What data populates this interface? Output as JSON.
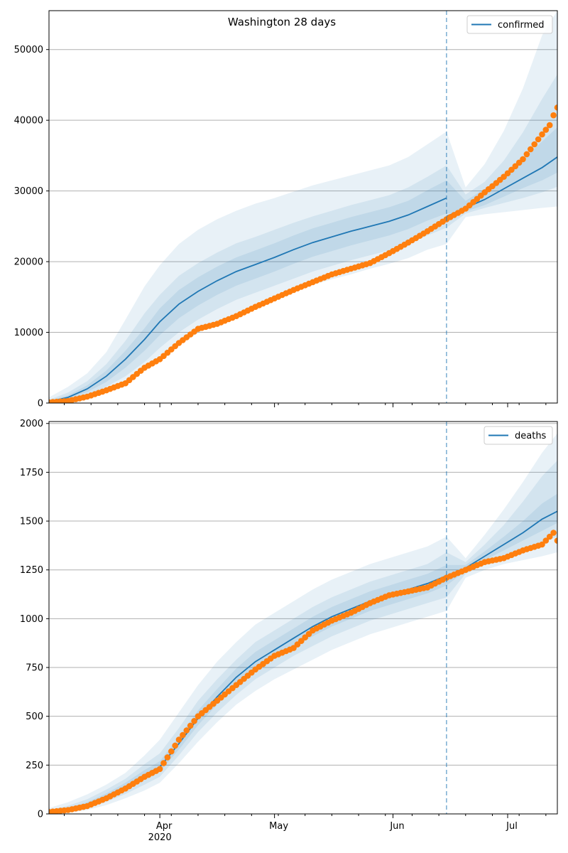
{
  "title": "Washington 28 days",
  "colors": {
    "model": "#1f77b4",
    "observed": "#ff7f0e",
    "band": "#1f77b4",
    "grid": "#b0b0b0",
    "divider": "#1f77b4"
  },
  "x_axis": {
    "start_date": "2020-03-03",
    "end_date": "2020-07-14",
    "cutoff_date": "2020-06-15",
    "month_labels": [
      {
        "date": "2020-04-01",
        "text": "Apr",
        "sub": "2020"
      },
      {
        "date": "2020-05-01",
        "text": "May",
        "sub": ""
      },
      {
        "date": "2020-06-01",
        "text": "Jun",
        "sub": ""
      },
      {
        "date": "2020-07-01",
        "text": "Jul",
        "sub": ""
      }
    ]
  },
  "chart_data": [
    {
      "type": "line",
      "panel": "confirmed",
      "legend": "confirmed",
      "legend_position": "top-right",
      "grid": "horizontal",
      "ylim": [
        0,
        55500
      ],
      "yticks": [
        0,
        10000,
        20000,
        30000,
        40000,
        50000
      ],
      "ytick_labels": [
        "0",
        "10000",
        "20000",
        "30000",
        "40000",
        "50000"
      ],
      "model": {
        "dates": [
          "2020-03-03",
          "2020-03-08",
          "2020-03-13",
          "2020-03-18",
          "2020-03-23",
          "2020-03-28",
          "2020-04-01",
          "2020-04-06",
          "2020-04-11",
          "2020-04-16",
          "2020-04-21",
          "2020-04-26",
          "2020-05-01",
          "2020-05-06",
          "2020-05-11",
          "2020-05-16",
          "2020-05-21",
          "2020-05-26",
          "2020-05-31",
          "2020-06-05",
          "2020-06-10",
          "2020-06-15",
          "2020-06-20",
          "2020-06-25",
          "2020-06-30",
          "2020-07-05",
          "2020-07-10",
          "2020-07-14"
        ],
        "values": [
          200,
          800,
          2000,
          3800,
          6200,
          9000,
          11500,
          14000,
          15800,
          17300,
          18600,
          19600,
          20600,
          21700,
          22700,
          23500,
          24300,
          25000,
          25700,
          26600,
          27800,
          29000,
          27600,
          28800,
          30300,
          31800,
          33300,
          34800
        ],
        "bands": [
          {
            "opacity": 0.1,
            "lower": [
              0,
              200,
              700,
              1600,
              2800,
              4500,
              6200,
              8200,
              9900,
              11300,
              12600,
              13600,
              14700,
              15700,
              16700,
              17500,
              18200,
              19000,
              19700,
              20500,
              21700,
              22500,
              26300,
              26700,
              27000,
              27300,
              27600,
              27800
            ],
            "upper": [
              800,
              2300,
              4200,
              7200,
              11800,
              16500,
              19500,
              22500,
              24500,
              26000,
              27200,
              28200,
              29000,
              29900,
              30800,
              31500,
              32200,
              32900,
              33600,
              34800,
              36600,
              38400,
              30500,
              33800,
              38500,
              44500,
              52000,
              55500
            ]
          },
          {
            "opacity": 0.1,
            "lower": [
              50,
              400,
              1100,
              2300,
              3800,
              5800,
              7800,
              10000,
              11800,
              13300,
              14600,
              15600,
              16600,
              17600,
              18600,
              19400,
              20200,
              20900,
              21600,
              22500,
              23700,
              24800,
              26800,
              27600,
              28300,
              29000,
              29800,
              30600
            ],
            "upper": [
              450,
              1500,
              3100,
              5500,
              8800,
              12700,
              15300,
              18000,
              19800,
              21300,
              22600,
              23500,
              24500,
              25500,
              26400,
              27200,
              28000,
              28700,
              29400,
              30500,
              32000,
              33600,
              29500,
              31300,
              34300,
              38300,
              43000,
              46500
            ]
          },
          {
            "opacity": 0.1,
            "lower": [
              100,
              600,
              1550,
              3000,
              5000,
              7400,
              9600,
              12000,
              13800,
              15300,
              16600,
              17600,
              18600,
              19700,
              20700,
              21500,
              22300,
              23000,
              23700,
              24600,
              25800,
              26800,
              27100,
              28000,
              29200,
              30400,
              31500,
              32600
            ],
            "upper": [
              300,
              1100,
              2500,
              4600,
              7400,
              10600,
              13400,
              16000,
              17800,
              19300,
              20600,
              21600,
              22600,
              23700,
              24700,
              25500,
              26300,
              27000,
              27700,
              28600,
              30100,
              31500,
              28600,
              30300,
              32300,
              34500,
              37000,
              39000
            ]
          }
        ]
      },
      "observed": {
        "dates": [
          "2020-03-03",
          "2020-03-08",
          "2020-03-13",
          "2020-03-18",
          "2020-03-23",
          "2020-03-28",
          "2020-04-01",
          "2020-04-06",
          "2020-04-11",
          "2020-04-16",
          "2020-04-21",
          "2020-04-26",
          "2020-05-01",
          "2020-05-06",
          "2020-05-11",
          "2020-05-16",
          "2020-05-21",
          "2020-05-26",
          "2020-05-31",
          "2020-06-05",
          "2020-06-10",
          "2020-06-15",
          "2020-06-20",
          "2020-06-25",
          "2020-06-30",
          "2020-07-05",
          "2020-07-10",
          "2020-07-12",
          "2020-07-13",
          "2020-07-14"
        ],
        "values": [
          100,
          300,
          900,
          1800,
          2800,
          5000,
          6200,
          8500,
          10500,
          11200,
          12300,
          13600,
          14800,
          16000,
          17100,
          18200,
          19000,
          19800,
          21200,
          22700,
          24300,
          26000,
          27500,
          29800,
          32000,
          34500,
          38000,
          39300,
          40700,
          41800
        ]
      }
    },
    {
      "type": "line",
      "panel": "deaths",
      "legend": "deaths",
      "legend_position": "top-right",
      "grid": "horizontal",
      "ylim": [
        0,
        2010
      ],
      "yticks": [
        0,
        250,
        500,
        750,
        1000,
        1250,
        1500,
        1750,
        2000
      ],
      "ytick_labels": [
        "0",
        "250",
        "500",
        "750",
        "1000",
        "1250",
        "1500",
        "1750",
        "2000"
      ],
      "model": {
        "dates": [
          "2020-03-03",
          "2020-03-08",
          "2020-03-13",
          "2020-03-18",
          "2020-03-23",
          "2020-03-28",
          "2020-04-01",
          "2020-04-06",
          "2020-04-11",
          "2020-04-16",
          "2020-04-21",
          "2020-04-26",
          "2020-05-01",
          "2020-05-06",
          "2020-05-11",
          "2020-05-16",
          "2020-05-21",
          "2020-05-26",
          "2020-05-31",
          "2020-06-05",
          "2020-06-10",
          "2020-06-15",
          "2020-06-20",
          "2020-06-25",
          "2020-06-30",
          "2020-07-05",
          "2020-07-10",
          "2020-07-14"
        ],
        "values": [
          10,
          25,
          50,
          90,
          140,
          200,
          240,
          360,
          490,
          600,
          700,
          780,
          840,
          900,
          960,
          1010,
          1050,
          1090,
          1120,
          1150,
          1180,
          1220,
          1260,
          1320,
          1380,
          1440,
          1510,
          1550
        ],
        "bands": [
          {
            "opacity": 0.1,
            "lower": [
              0,
              5,
              20,
              45,
              80,
              120,
              160,
              260,
              370,
              470,
              560,
              630,
              690,
              740,
              790,
              840,
              880,
              920,
              950,
              980,
              1010,
              1040,
              1210,
              1250,
              1280,
              1300,
              1320,
              1340
            ],
            "upper": [
              30,
              60,
              100,
              150,
              210,
              300,
              380,
              520,
              660,
              780,
              880,
              970,
              1030,
              1090,
              1150,
              1200,
              1240,
              1280,
              1310,
              1340,
              1370,
              1420,
              1310,
              1430,
              1560,
              1700,
              1850,
              1950
            ]
          },
          {
            "opacity": 0.1,
            "lower": [
              3,
              12,
              32,
              62,
              102,
              150,
              190,
              300,
              420,
              520,
              610,
              690,
              750,
              810,
              860,
              910,
              950,
              990,
              1020,
              1050,
              1080,
              1110,
              1230,
              1280,
              1320,
              1360,
              1390,
              1420
            ],
            "upper": [
              20,
              42,
              75,
              125,
              180,
              255,
              310,
              440,
              580,
              690,
              790,
              880,
              940,
              1000,
              1060,
              1110,
              1150,
              1190,
              1220,
              1250,
              1280,
              1340,
              1290,
              1380,
              1480,
              1600,
              1730,
              1810
            ]
          },
          {
            "opacity": 0.1,
            "lower": [
              6,
              18,
              40,
              75,
              120,
              175,
              215,
              330,
              455,
              560,
              655,
              735,
              795,
              855,
              910,
              960,
              1000,
              1040,
              1070,
              1100,
              1130,
              1170,
              1245,
              1300,
              1350,
              1400,
              1450,
              1490
            ],
            "upper": [
              15,
              32,
              60,
              105,
              160,
              225,
              270,
              395,
              530,
              640,
              745,
              830,
              890,
              950,
              1010,
              1060,
              1100,
              1140,
              1170,
              1200,
              1230,
              1275,
              1275,
              1345,
              1420,
              1500,
              1590,
              1640
            ]
          }
        ]
      },
      "observed": {
        "dates": [
          "2020-03-03",
          "2020-03-08",
          "2020-03-13",
          "2020-03-18",
          "2020-03-23",
          "2020-03-28",
          "2020-04-01",
          "2020-04-06",
          "2020-04-11",
          "2020-04-16",
          "2020-04-21",
          "2020-04-26",
          "2020-05-01",
          "2020-05-06",
          "2020-05-11",
          "2020-05-16",
          "2020-05-21",
          "2020-05-26",
          "2020-05-31",
          "2020-06-05",
          "2020-06-10",
          "2020-06-15",
          "2020-06-20",
          "2020-06-25",
          "2020-06-30",
          "2020-07-05",
          "2020-07-10",
          "2020-07-13",
          "2020-07-14"
        ],
        "values": [
          10,
          20,
          40,
          80,
          130,
          190,
          230,
          380,
          500,
          580,
          660,
          740,
          810,
          850,
          940,
          990,
          1030,
          1080,
          1120,
          1140,
          1160,
          1210,
          1250,
          1290,
          1310,
          1350,
          1380,
          1440,
          1400
        ]
      }
    }
  ]
}
